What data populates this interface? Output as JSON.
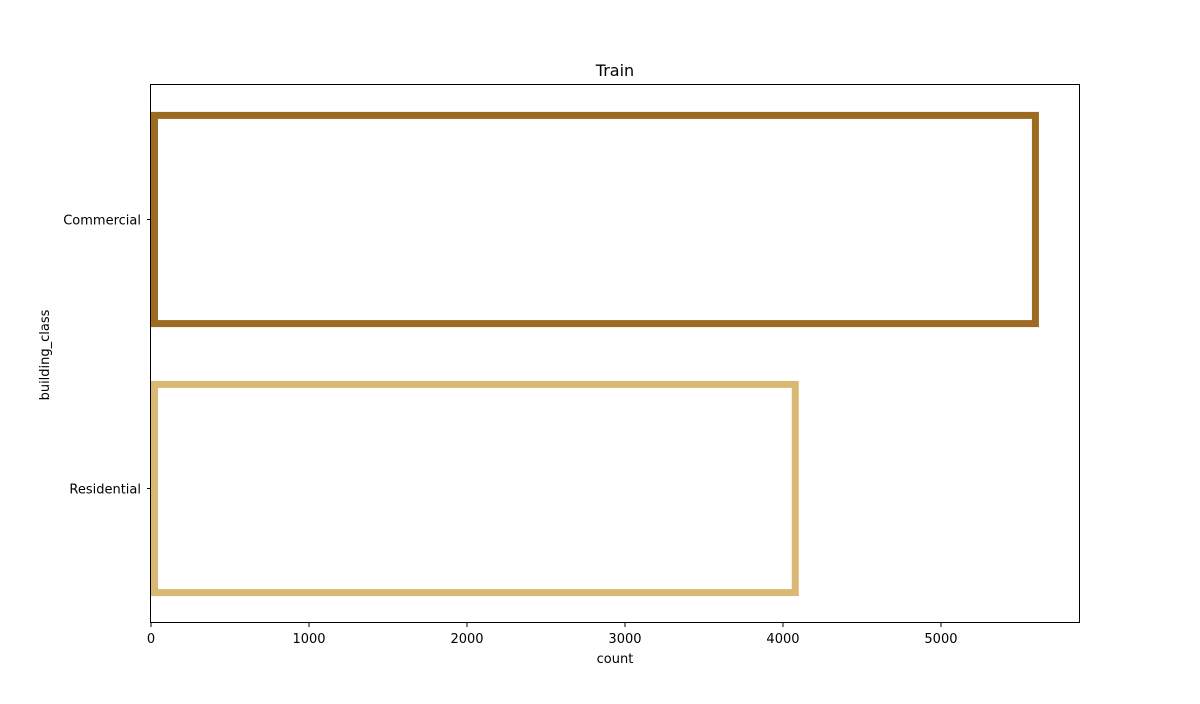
{
  "chart_data": {
    "type": "bar",
    "orientation": "horizontal",
    "title": "Train",
    "xlabel": "count",
    "ylabel": "building_class",
    "categories": [
      "Commercial",
      "Residential"
    ],
    "values": [
      5620,
      4100
    ],
    "bar_colors": [
      "#9c6a20",
      "#d9b873"
    ],
    "bar_style": "outline",
    "xlim": [
      0,
      5880
    ],
    "xticks": [
      0,
      1000,
      2000,
      3000,
      4000,
      5000
    ],
    "xtick_labels": [
      "0",
      "1000",
      "2000",
      "3000",
      "4000",
      "5000"
    ],
    "grid": false,
    "legend": "none"
  }
}
